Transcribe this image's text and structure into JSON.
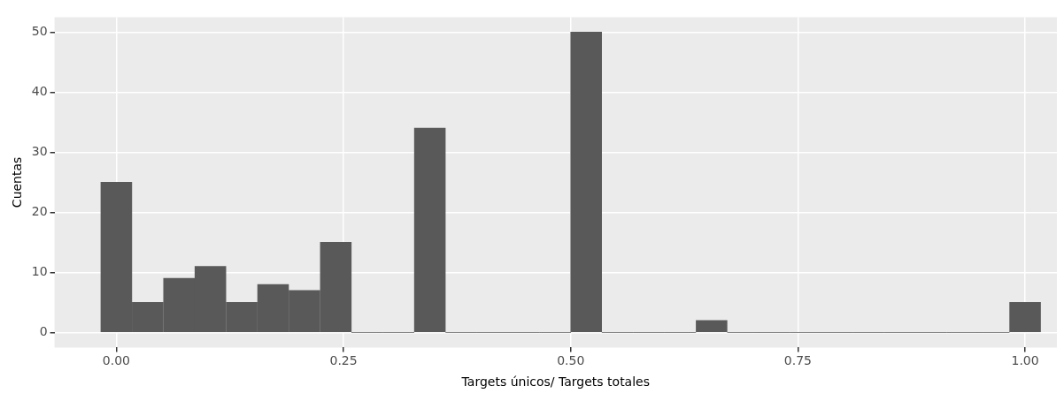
{
  "chart_data": {
    "type": "histogram",
    "xlabel": "Targets únicos/ Targets totales",
    "ylabel": "Cuentas",
    "bins": [
      -0.017,
      0.017,
      0.052,
      0.086,
      0.121,
      0.155,
      0.19,
      0.224,
      0.259,
      0.293,
      0.328,
      0.362,
      0.397,
      0.431,
      0.466,
      0.5,
      0.534,
      0.569,
      0.603,
      0.638,
      0.672,
      0.707,
      0.741,
      0.776,
      0.81,
      0.845,
      0.879,
      0.914,
      0.948,
      0.983,
      1.017
    ],
    "values": [
      25,
      5,
      9,
      11,
      5,
      8,
      7,
      15,
      0,
      0,
      34,
      0,
      0,
      0,
      0,
      50,
      0,
      0,
      0,
      2,
      0,
      0,
      0,
      0,
      0,
      0,
      0,
      0,
      0,
      5
    ],
    "color": "#595959",
    "xlim": [
      -0.068,
      1.035
    ],
    "xticks": [
      {
        "value": 0,
        "label": "0.00"
      },
      {
        "value": 0.25,
        "label": "0.25"
      },
      {
        "value": 0.5,
        "label": "0.50"
      },
      {
        "value": 0.75,
        "label": "0.75"
      },
      {
        "value": 1,
        "label": "1.00"
      }
    ],
    "ylim": [
      -2.5,
      52.5
    ],
    "yticks": [
      0,
      10,
      20,
      30,
      40,
      50
    ],
    "grid": true,
    "legend": false
  }
}
